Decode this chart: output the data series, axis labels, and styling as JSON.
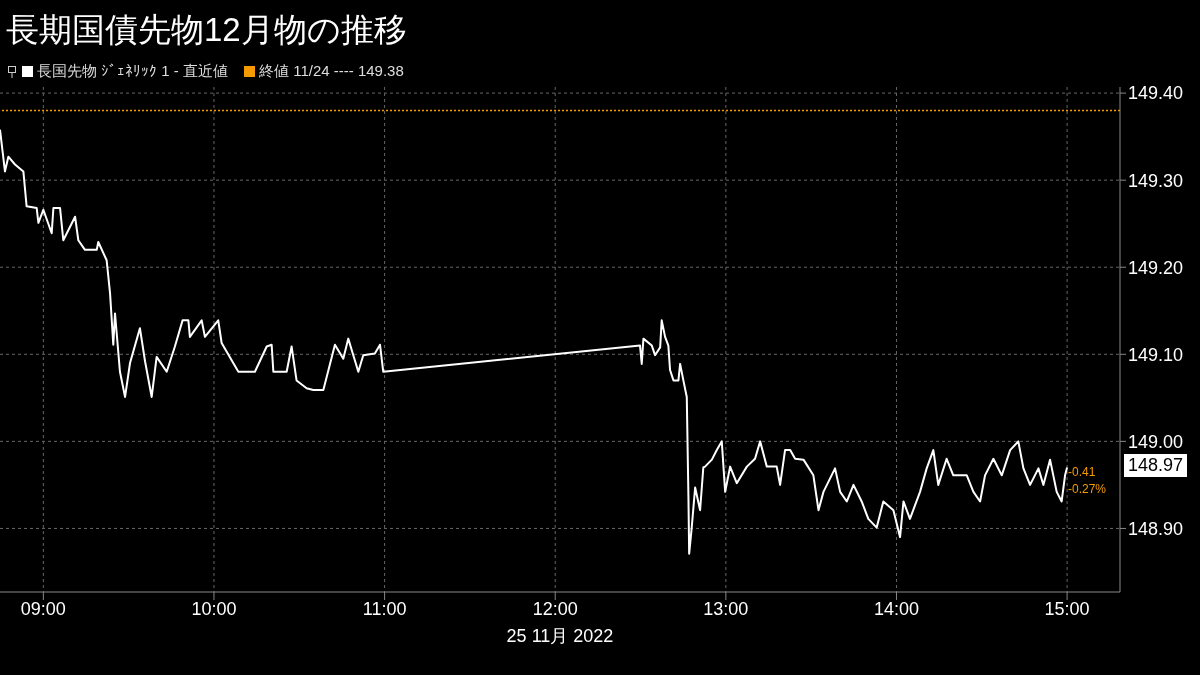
{
  "chart_data": {
    "type": "line",
    "title": "長期国債先物12月物の推移",
    "xlabel": "25 11月 2022",
    "xlim": [
      8.746,
      15.31
    ],
    "ylim": [
      148.827,
      149.407
    ],
    "xticks": [
      {
        "value": 9,
        "label": "09:00"
      },
      {
        "value": 10,
        "label": "10:00"
      },
      {
        "value": 11,
        "label": "11:00"
      },
      {
        "value": 12,
        "label": "12:00"
      },
      {
        "value": 13,
        "label": "13:00"
      },
      {
        "value": 14,
        "label": "14:00"
      },
      {
        "value": 15,
        "label": "15:00"
      }
    ],
    "yticks": [
      {
        "value": 148.9,
        "label": "148.90"
      },
      {
        "value": 149.0,
        "label": "149.00"
      },
      {
        "value": 149.1,
        "label": "149.10"
      },
      {
        "value": 149.2,
        "label": "149.20"
      },
      {
        "value": 149.3,
        "label": "149.30"
      },
      {
        "value": 149.4,
        "label": "149.40"
      }
    ],
    "grid": true,
    "legend": "top left",
    "marker": "none",
    "line_style": "solid",
    "series": [
      {
        "name": "長国先物 ｼﾞｪﾈﾘｯｸ 1 - 直近値",
        "color": "#ffffff",
        "x": [
          8.746,
          8.775,
          8.795,
          8.834,
          8.883,
          8.902,
          8.961,
          8.971,
          9.0,
          9.049,
          9.059,
          9.098,
          9.117,
          9.186,
          9.205,
          9.244,
          9.313,
          9.322,
          9.371,
          9.391,
          9.41,
          9.42,
          9.449,
          9.479,
          9.508,
          9.566,
          9.596,
          9.635,
          9.664,
          9.723,
          9.771,
          9.816,
          9.85,
          9.859,
          9.928,
          9.947,
          10.025,
          10.045,
          10.113,
          10.143,
          10.24,
          10.309,
          10.338,
          10.348,
          10.426,
          10.455,
          10.484,
          10.543,
          10.582,
          10.641,
          10.709,
          10.758,
          10.787,
          10.846,
          10.875,
          10.943,
          10.973,
          10.992,
          12.497,
          12.507,
          12.517,
          12.566,
          12.585,
          12.615,
          12.624,
          12.644,
          12.663,
          12.673,
          12.693,
          12.722,
          12.732,
          12.751,
          12.771,
          12.781,
          12.785,
          12.8,
          12.82,
          12.849,
          12.868,
          12.878,
          12.918,
          12.947,
          12.976,
          12.996,
          13.025,
          13.064,
          13.123,
          13.171,
          13.201,
          13.24,
          13.298,
          13.318,
          13.347,
          13.377,
          13.406,
          13.455,
          13.513,
          13.543,
          13.572,
          13.64,
          13.67,
          13.709,
          13.748,
          13.796,
          13.835,
          13.884,
          13.923,
          13.982,
          14.021,
          14.041,
          14.079,
          14.138,
          14.177,
          14.216,
          14.245,
          14.294,
          14.333,
          14.412,
          14.451,
          14.49,
          14.519,
          14.568,
          14.617,
          14.666,
          14.714,
          14.744,
          14.783,
          14.832,
          14.861,
          14.9,
          14.939,
          14.968,
          14.988,
          15.0
        ],
        "values": [
          149.358,
          149.31,
          149.327,
          149.318,
          149.31,
          149.27,
          149.268,
          149.251,
          149.266,
          149.239,
          149.268,
          149.268,
          149.231,
          149.258,
          149.231,
          149.22,
          149.22,
          149.229,
          149.208,
          149.17,
          149.111,
          149.147,
          149.08,
          149.051,
          149.09,
          149.13,
          149.092,
          149.051,
          149.097,
          149.08,
          149.109,
          149.139,
          149.139,
          149.12,
          149.139,
          149.12,
          149.139,
          149.113,
          149.09,
          149.08,
          149.08,
          149.109,
          149.111,
          149.08,
          149.08,
          149.109,
          149.07,
          149.061,
          149.059,
          149.059,
          149.111,
          149.095,
          149.118,
          149.08,
          149.099,
          149.101,
          149.111,
          149.08,
          149.11,
          149.089,
          149.118,
          149.11,
          149.099,
          149.108,
          149.139,
          149.12,
          149.11,
          149.082,
          149.07,
          149.07,
          149.089,
          149.07,
          149.051,
          148.932,
          148.871,
          148.901,
          148.947,
          148.921,
          148.97,
          148.971,
          148.979,
          148.99,
          149.0,
          148.942,
          148.971,
          148.952,
          148.971,
          148.98,
          149.0,
          148.971,
          148.971,
          148.95,
          148.99,
          148.99,
          148.98,
          148.979,
          148.961,
          148.921,
          148.942,
          148.969,
          148.942,
          148.931,
          148.95,
          148.931,
          148.911,
          148.901,
          148.931,
          148.921,
          148.89,
          148.931,
          148.911,
          148.942,
          148.969,
          148.99,
          148.95,
          148.98,
          148.961,
          148.961,
          148.942,
          148.931,
          148.961,
          148.98,
          148.961,
          148.99,
          149.0,
          148.969,
          148.95,
          148.969,
          148.95,
          148.979,
          148.942,
          148.931,
          148.961,
          148.97
        ]
      }
    ],
    "ref_lines": [
      {
        "axis": "y",
        "value": 149.38,
        "label": "終値 11/24 ---- 149.38",
        "color": "#f59a00",
        "line_style": "dotted"
      }
    ],
    "annotations": [
      "148.97",
      "-0.41",
      "-0.27%"
    ]
  }
}
